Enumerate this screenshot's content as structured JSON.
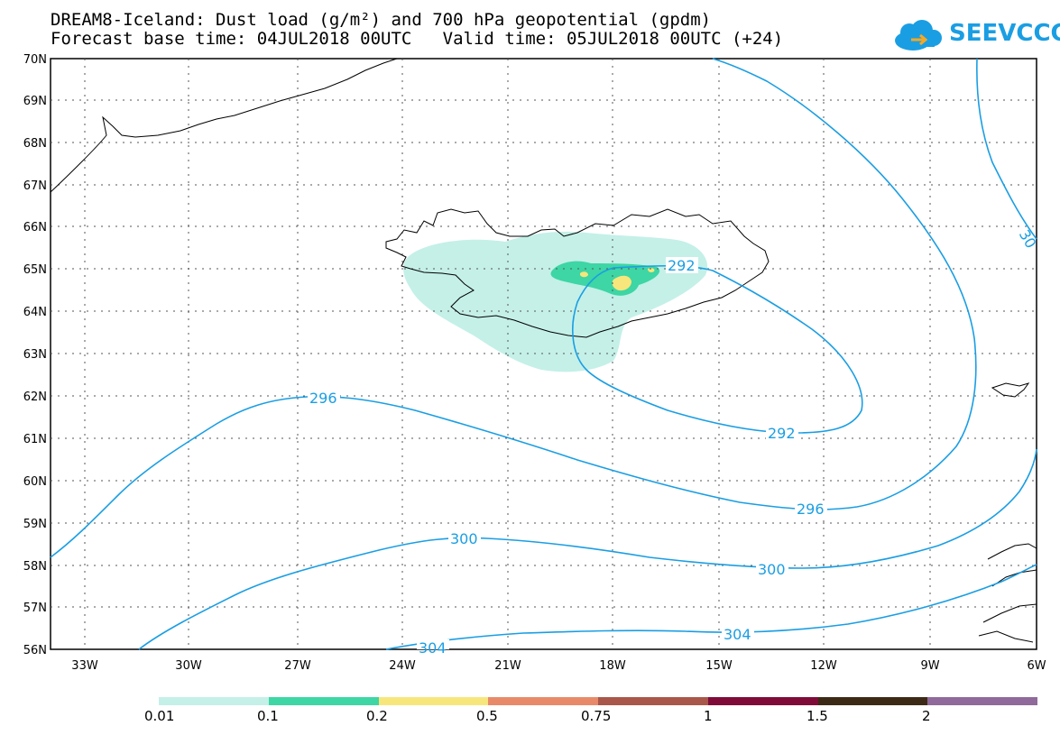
{
  "title_line1": "DREAM8-Iceland: Dust load (g/m²) and 700 hPa geopotential (gpdm)",
  "title_line2": "Forecast base time: 04JUL2018 00UTC   Valid time: 05JUL2018 00UTC (+24)",
  "logo_text": "SEEVCCC",
  "logo_icon": "cloud-arrow-logo",
  "lat_labels": [
    "70N",
    "69N",
    "68N",
    "67N",
    "66N",
    "65N",
    "64N",
    "63N",
    "62N",
    "61N",
    "60N",
    "59N",
    "58N",
    "57N",
    "56N"
  ],
  "lon_labels": [
    "33W",
    "30W",
    "27W",
    "24W",
    "21W",
    "18W",
    "15W",
    "12W",
    "9W",
    "6W"
  ],
  "contour_labels": {
    "c292a": "292",
    "c292b": "292",
    "c296a": "296",
    "c296b": "296",
    "c300a": "300",
    "c300b": "300",
    "c304a": "304",
    "c304b": "304",
    "c30edge": "30"
  },
  "legend": {
    "colors": [
      "#c4f0e8",
      "#3dd6a4",
      "#f7e67c",
      "#e88a6a",
      "#a9574a",
      "#7f0b38",
      "#3d2a16",
      "#8f6a9a"
    ],
    "labels": [
      "0.01",
      "0.1",
      "0.2",
      "0.5",
      "0.75",
      "1",
      "1.5",
      "2"
    ]
  },
  "colors": {
    "contour": "#1a9ee3",
    "coast": "#000000",
    "grid": "#555555"
  }
}
